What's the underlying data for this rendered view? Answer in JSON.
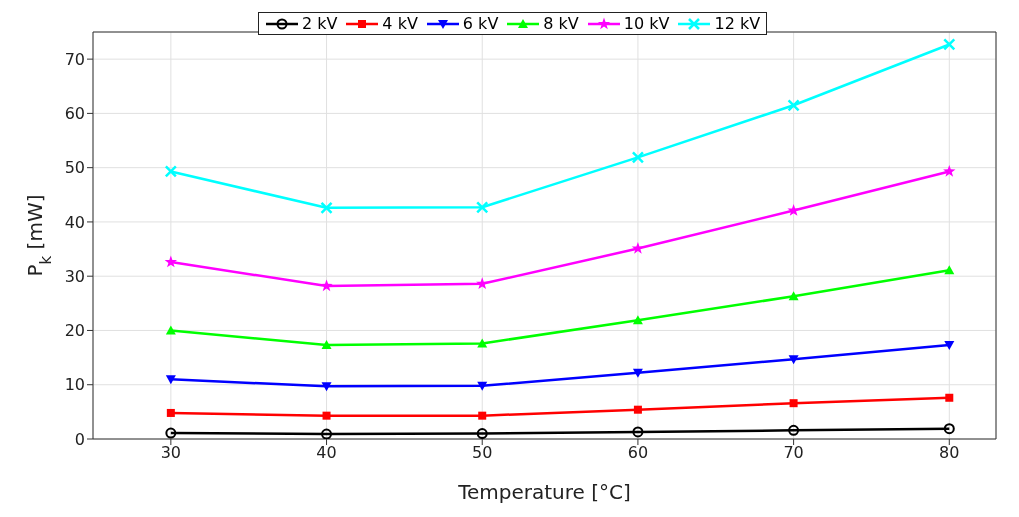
{
  "chart_data": {
    "type": "line",
    "xlabel": "Temperature [°C]",
    "ylabel": "P$_{k}$ [mW]",
    "x": [
      30,
      40,
      50,
      60,
      70,
      80
    ],
    "xlim": [
      25,
      83
    ],
    "xticks": [
      30,
      40,
      50,
      60,
      70,
      80
    ],
    "ylim": [
      0,
      75
    ],
    "yticks": [
      0,
      10,
      20,
      30,
      40,
      50,
      60,
      70
    ],
    "grid": true,
    "legend": "top",
    "series": [
      {
        "name": "2 kV",
        "color": "#000000",
        "marker": "circle",
        "values": [
          1.1,
          0.9,
          1.0,
          1.3,
          1.6,
          1.9
        ]
      },
      {
        "name": "4 kV",
        "color": "#ff0000",
        "marker": "square",
        "values": [
          4.8,
          4.3,
          4.3,
          5.4,
          6.6,
          7.6
        ]
      },
      {
        "name": "6 kV",
        "color": "#0000ff",
        "marker": "triangle-down",
        "values": [
          11,
          9.7,
          9.8,
          12.2,
          14.7,
          17.3
        ]
      },
      {
        "name": "8 kV",
        "color": "#00ff00",
        "marker": "triangle",
        "values": [
          20,
          17.3,
          17.6,
          21.9,
          26.3,
          31.1
        ]
      },
      {
        "name": "10 kV",
        "color": "#ff00ff",
        "marker": "star",
        "values": [
          32.6,
          28.2,
          28.6,
          35.1,
          42.1,
          49.3
        ]
      },
      {
        "name": "12 kV",
        "color": "#00ffff",
        "marker": "cross",
        "values": [
          49.3,
          42.6,
          42.7,
          51.9,
          61.5,
          72.7
        ]
      }
    ]
  }
}
